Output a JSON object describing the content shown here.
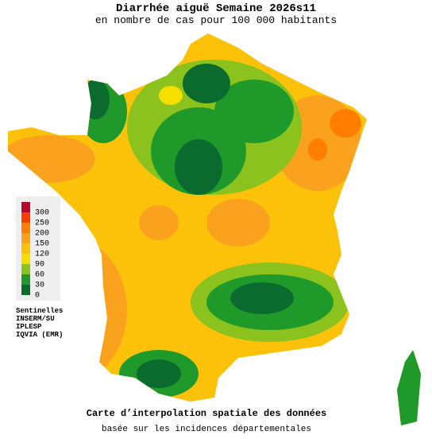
{
  "header": {
    "title": "Diarrhée aiguë Semaine 2026s11",
    "subtitle": "en nombre de cas pour 100 000 habitants"
  },
  "legend": {
    "levels": [
      {
        "value": 300,
        "color": "#b5082c"
      },
      {
        "value": 250,
        "color": "#ff3c00"
      },
      {
        "value": 200,
        "color": "#ff7e00"
      },
      {
        "value": 150,
        "color": "#faa21e"
      },
      {
        "value": 120,
        "color": "#fcc20a"
      },
      {
        "value": 90,
        "color": "#f6de00"
      },
      {
        "value": 60,
        "color": "#8cc21e"
      },
      {
        "value": 30,
        "color": "#1f9a2a"
      },
      {
        "value": 0,
        "color": "#0b6a2d"
      }
    ]
  },
  "sources": [
    "Sentinelles",
    "INSERM/SU",
    "IPLESP",
    "IQVIA (EMR)"
  ],
  "footer": {
    "title": "Carte d’interpolation spatiale des données",
    "subtitle": "basée sur les incidences départementales"
  }
}
